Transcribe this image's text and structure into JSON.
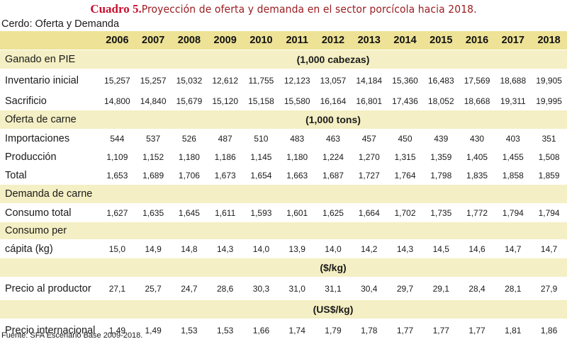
{
  "title": {
    "label": "Cuadro 5.",
    "text": "Proyección de oferta y demanda en el sector porcícola hacia 2018."
  },
  "subtitle": "Cerdo: Oferta y Demanda",
  "years": [
    "2006",
    "2007",
    "2008",
    "2009",
    "2010",
    "2011",
    "2012",
    "2013",
    "2014",
    "2015",
    "2016",
    "2017",
    "2018"
  ],
  "sections": {
    "ganado": {
      "label": "Ganado en PIE",
      "unit": "(1,000 cabezas)"
    },
    "oferta": {
      "label": "Oferta de carne",
      "unit": "(1,000 tons)"
    },
    "demanda": {
      "label": "Demanda de carne"
    },
    "precio_productor_unit": "($/kg)",
    "precio_internacional_unit": "(US$/kg)"
  },
  "rows": {
    "inventario": {
      "label": "Inventario inicial",
      "values": [
        "15,257",
        "15,257",
        "15,032",
        "12,612",
        "11,755",
        "12,123",
        "13,057",
        "14,184",
        "15,360",
        "16,483",
        "17,569",
        "18,688",
        "19,905"
      ]
    },
    "sacrificio": {
      "label": "Sacrificio",
      "values": [
        "14,800",
        "14,840",
        "15,679",
        "15,120",
        "15,158",
        "15,580",
        "16,164",
        "16,801",
        "17,436",
        "18,052",
        "18,668",
        "19,311",
        "19,995"
      ]
    },
    "importaciones": {
      "label": "Importaciones",
      "values": [
        "544",
        "537",
        "526",
        "487",
        "510",
        "483",
        "463",
        "457",
        "450",
        "439",
        "430",
        "403",
        "351"
      ]
    },
    "produccion": {
      "label": "Producción",
      "values": [
        "1,109",
        "1,152",
        "1,180",
        "1,186",
        "1,145",
        "1,180",
        "1,224",
        "1,270",
        "1,315",
        "1,359",
        "1,405",
        "1,455",
        "1,508"
      ]
    },
    "total": {
      "label": "Total",
      "values": [
        "1,653",
        "1,689",
        "1,706",
        "1,673",
        "1,654",
        "1,663",
        "1,687",
        "1,727",
        "1,764",
        "1,798",
        "1,835",
        "1,858",
        "1,859"
      ]
    },
    "consumo_total": {
      "label": "Consumo total",
      "values": [
        "1,627",
        "1,635",
        "1,645",
        "1,611",
        "1,593",
        "1,601",
        "1,625",
        "1,664",
        "1,702",
        "1,735",
        "1,772",
        "1,794",
        "1,794"
      ]
    },
    "consumo_percapita": {
      "label_line1": "Consumo per",
      "label_line2": "cápita (kg)",
      "values": [
        "15,0",
        "14,9",
        "14,8",
        "14,3",
        "14,0",
        "13,9",
        "14,0",
        "14,2",
        "14,3",
        "14,5",
        "14,6",
        "14,7",
        "14,7"
      ]
    },
    "precio_productor": {
      "label": "Precio al productor",
      "values": [
        "27,1",
        "25,7",
        "24,7",
        "28,6",
        "30,3",
        "31,0",
        "31,1",
        "30,4",
        "29,7",
        "29,1",
        "28,4",
        "28,1",
        "27,9"
      ]
    },
    "precio_internacional": {
      "label": "Precio internacional",
      "values": [
        "1,49",
        "1,49",
        "1,53",
        "1,53",
        "1,66",
        "1,74",
        "1,79",
        "1,78",
        "1,77",
        "1,77",
        "1,77",
        "1,81",
        "1,86"
      ]
    }
  },
  "source": "Fuente: SFA Escenario Base 2009-2018."
}
